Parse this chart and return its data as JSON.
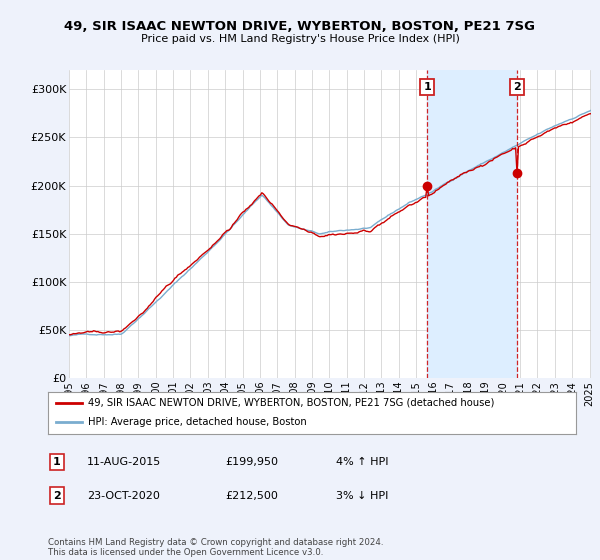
{
  "title": "49, SIR ISAAC NEWTON DRIVE, WYBERTON, BOSTON, PE21 7SG",
  "subtitle": "Price paid vs. HM Land Registry's House Price Index (HPI)",
  "yticks": [
    0,
    50000,
    100000,
    150000,
    200000,
    250000,
    300000
  ],
  "ytick_labels": [
    "£0",
    "£50K",
    "£100K",
    "£150K",
    "£200K",
    "£250K",
    "£300K"
  ],
  "property_color": "#cc0000",
  "hpi_color": "#7aadcf",
  "shade_color": "#ddeeff",
  "legend_property": "49, SIR ISAAC NEWTON DRIVE, WYBERTON, BOSTON, PE21 7SG (detached house)",
  "legend_hpi": "HPI: Average price, detached house, Boston",
  "annotation1_label": "1",
  "annotation1_date": "11-AUG-2015",
  "annotation1_price": "£199,950",
  "annotation1_hpi": "4% ↑ HPI",
  "annotation2_label": "2",
  "annotation2_date": "23-OCT-2020",
  "annotation2_price": "£212,500",
  "annotation2_hpi": "3% ↓ HPI",
  "footer": "Contains HM Land Registry data © Crown copyright and database right 2024.\nThis data is licensed under the Open Government Licence v3.0.",
  "background_color": "#eef2fb",
  "plot_bg_color": "#ffffff",
  "grid_color": "#cccccc",
  "year_start": 1995,
  "year_end": 2025
}
